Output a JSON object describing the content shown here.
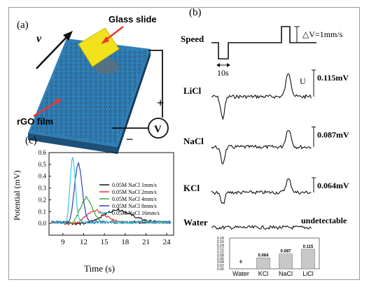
{
  "figure": {
    "panel_a": {
      "label": "(a)",
      "glass_slide_label": "Glass slide",
      "film_label": "rGO film",
      "velocity_symbol": "v",
      "plus_sign": "+",
      "minus_sign": "−",
      "meter_symbol": "V",
      "colors": {
        "film": "#3a8fc9",
        "slide": "#f2e21e",
        "arrow": "#e53935"
      }
    },
    "panel_b": {
      "label": "(b)",
      "speed_label": "Speed",
      "delta_v_label": "△V=1mm/s",
      "time_scale_label": "10s",
      "voltage_scale_symbol": "U",
      "traces": [
        {
          "name": "LiCl",
          "amplitude": "0.115mV"
        },
        {
          "name": "NaCl",
          "amplitude": "0.087mV"
        },
        {
          "name": "KCl",
          "amplitude": "0.064mV"
        },
        {
          "name": "Water",
          "amplitude": "undetectable"
        }
      ]
    },
    "panel_c": {
      "label": "(c)"
    }
  },
  "chart_data": [
    {
      "type": "bar",
      "categories": [
        "Water",
        "KCl",
        "NaCl",
        "LiCl"
      ],
      "values": [
        0,
        0.064,
        0.087,
        0.115
      ],
      "value_labels": [
        "0",
        "0.064",
        "0.087",
        "0.115"
      ],
      "ylim": [
        0,
        0.18
      ],
      "yticks": [
        "0.18",
        "0.16",
        "0.14",
        "0.12",
        "0.10",
        "0.08",
        "0.06",
        "0.04",
        "0.02",
        "0.00"
      ],
      "bar_color": "#c8c8c8"
    },
    {
      "type": "line",
      "xlabel": "Time (s)",
      "ylabel": "Potential (mV)",
      "xlim": [
        7,
        25
      ],
      "ylim": [
        -0.1,
        0.6
      ],
      "xticks": [
        "9",
        "12",
        "15",
        "18",
        "21",
        "24"
      ],
      "yticks": [
        "0.0",
        "0.1",
        "0.2",
        "0.3",
        "0.4",
        "0.5",
        "0.6"
      ],
      "series": [
        {
          "name": "0.05M NaCl 1mm/s",
          "color": "#111111",
          "peak_x": 16.5,
          "peak_y": 0.11,
          "width": 3.2
        },
        {
          "name": "0.05M NaCl 2mm/s",
          "color": "#e53935",
          "peak_x": 13.5,
          "peak_y": 0.1,
          "width": 2.2
        },
        {
          "name": "0.05M NaCl 4mm/s",
          "color": "#3aa83a",
          "peak_x": 12.3,
          "peak_y": 0.21,
          "width": 1.3
        },
        {
          "name": "0.05M NaCl 8mm/s",
          "color": "#2f3fb5",
          "peak_x": 11.2,
          "peak_y": 0.5,
          "width": 0.8
        },
        {
          "name": "0.05M NaCl 16mm/s",
          "color": "#36c8d8",
          "peak_x": 10.4,
          "peak_y": 0.55,
          "width": 0.55
        }
      ]
    }
  ]
}
